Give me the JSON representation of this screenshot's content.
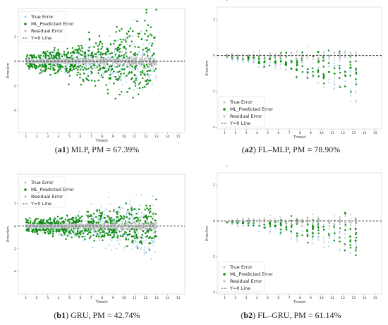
{
  "colors": {
    "true_error": "#a9cfe6",
    "predicted_error": "#0f8a0f",
    "residual_error": "#bdbdbd",
    "zero_line": "#000000",
    "frame": "#cccccc"
  },
  "chart_data": [
    {
      "id": "a1",
      "type": "scatter",
      "caption_tag": "a1",
      "caption_text": ") MLP, PM = 67.39%",
      "xlabel": "Time/d",
      "ylabel": "Error/km",
      "xticks": [
        1,
        2,
        3,
        4,
        5,
        6,
        7,
        8,
        9,
        10,
        11,
        12,
        13,
        14,
        15
      ],
      "yticks": [
        -4,
        -2,
        0,
        2
      ],
      "xlim": [
        0.3,
        15.6
      ],
      "ylim": [
        -5.8,
        4.3
      ],
      "legend": [
        "True Error",
        "ML_Predicted Error",
        "Residual Error",
        "Y=0 Line"
      ],
      "legend_position": "top-left",
      "series": [
        {
          "name": "True Error",
          "x_range": [
            1,
            13
          ],
          "spread_start": 0.4,
          "spread_end": 4.0,
          "skew": 0.0
        },
        {
          "name": "ML_Predicted Error",
          "x_range": [
            1,
            13
          ],
          "spread_start": 0.5,
          "spread_end": 4.8,
          "skew": 0.0
        },
        {
          "name": "Residual Error",
          "x_range": [
            1,
            13
          ],
          "spread_start": 0.2,
          "spread_end": 0.5,
          "skew": 0.0
        }
      ]
    },
    {
      "id": "a2",
      "type": "scatter",
      "caption_tag": "a2",
      "caption_text": ") FL–MLP, PM = 78.90%",
      "xlabel": "Time/d",
      "ylabel": "Error/km",
      "xticks": [
        1,
        2,
        3,
        4,
        5,
        6,
        7,
        8,
        9,
        10,
        11,
        12,
        13,
        14,
        15
      ],
      "yticks": [
        -4,
        -2,
        0,
        2
      ],
      "xlim": [
        0.3,
        15.6
      ],
      "ylim": [
        -4.1,
        2.7
      ],
      "legend": [
        "True Error",
        "ML_Predicted Error",
        "Residual Error",
        "Y=0 Line"
      ],
      "legend_position": "lower-left",
      "series": [
        {
          "name": "True Error",
          "x_range": [
            1.2,
            13
          ],
          "spread_start": 0.3,
          "spread_end": 3.0,
          "skew": -0.75
        },
        {
          "name": "ML_Predicted Error",
          "x_range": [
            1.2,
            13
          ],
          "spread_start": 0.2,
          "spread_end": 2.8,
          "skew": -0.7
        },
        {
          "name": "Residual Error",
          "x_range": [
            1.2,
            13
          ],
          "spread_start": 0.2,
          "spread_end": 0.5,
          "skew": 0.0
        }
      ]
    },
    {
      "id": "b1",
      "type": "scatter",
      "caption_tag": "b1",
      "caption_text": ") GRU, PM = 42.74%",
      "xlabel": "Time/d",
      "ylabel": "Error/km",
      "xticks": [
        1,
        2,
        3,
        4,
        5,
        6,
        7,
        8,
        9,
        10,
        11,
        12,
        13,
        14,
        15
      ],
      "yticks": [
        -4,
        -2,
        0,
        2
      ],
      "xlim": [
        0.3,
        15.6
      ],
      "ylim": [
        -6.0,
        4.6
      ],
      "legend": [
        "True Error",
        "ML_Predicted Error",
        "Residual Error",
        "Y=0 Line"
      ],
      "legend_position": "top-left",
      "series": [
        {
          "name": "True Error",
          "x_range": [
            1,
            13
          ],
          "spread_start": 0.4,
          "spread_end": 4.4,
          "skew": 0.0
        },
        {
          "name": "ML_Predicted Error",
          "x_range": [
            1,
            13
          ],
          "spread_start": 0.5,
          "spread_end": 2.3,
          "skew": 0.0
        },
        {
          "name": "Residual Error",
          "x_range": [
            1,
            13
          ],
          "spread_start": 0.2,
          "spread_end": 0.6,
          "skew": 0.0
        }
      ]
    },
    {
      "id": "b2",
      "type": "scatter",
      "caption_tag": "b2",
      "caption_text": ") FL–GRU, PM = 61.14%",
      "xlabel": "Time/d",
      "ylabel": "Error/km",
      "xticks": [
        1,
        2,
        3,
        4,
        5,
        6,
        7,
        8,
        9,
        10,
        11,
        12,
        13,
        14,
        15
      ],
      "yticks": [
        -4,
        -2,
        0,
        2
      ],
      "xlim": [
        0.3,
        15.6
      ],
      "ylim": [
        -4.1,
        2.7
      ],
      "legend": [
        "True Error",
        "ML_Predicted Error",
        "Residual Error",
        "Y=0 Line"
      ],
      "legend_position": "lower-left",
      "series": [
        {
          "name": "True Error",
          "x_range": [
            1.2,
            13
          ],
          "spread_start": 0.3,
          "spread_end": 3.0,
          "skew": -0.6
        },
        {
          "name": "ML_Predicted Error",
          "x_range": [
            1.2,
            13
          ],
          "spread_start": 0.2,
          "spread_end": 2.8,
          "skew": -0.5
        },
        {
          "name": "Residual Error",
          "x_range": [
            1.2,
            13
          ],
          "spread_start": 0.2,
          "spread_end": 0.5,
          "skew": 0.0
        }
      ]
    }
  ]
}
